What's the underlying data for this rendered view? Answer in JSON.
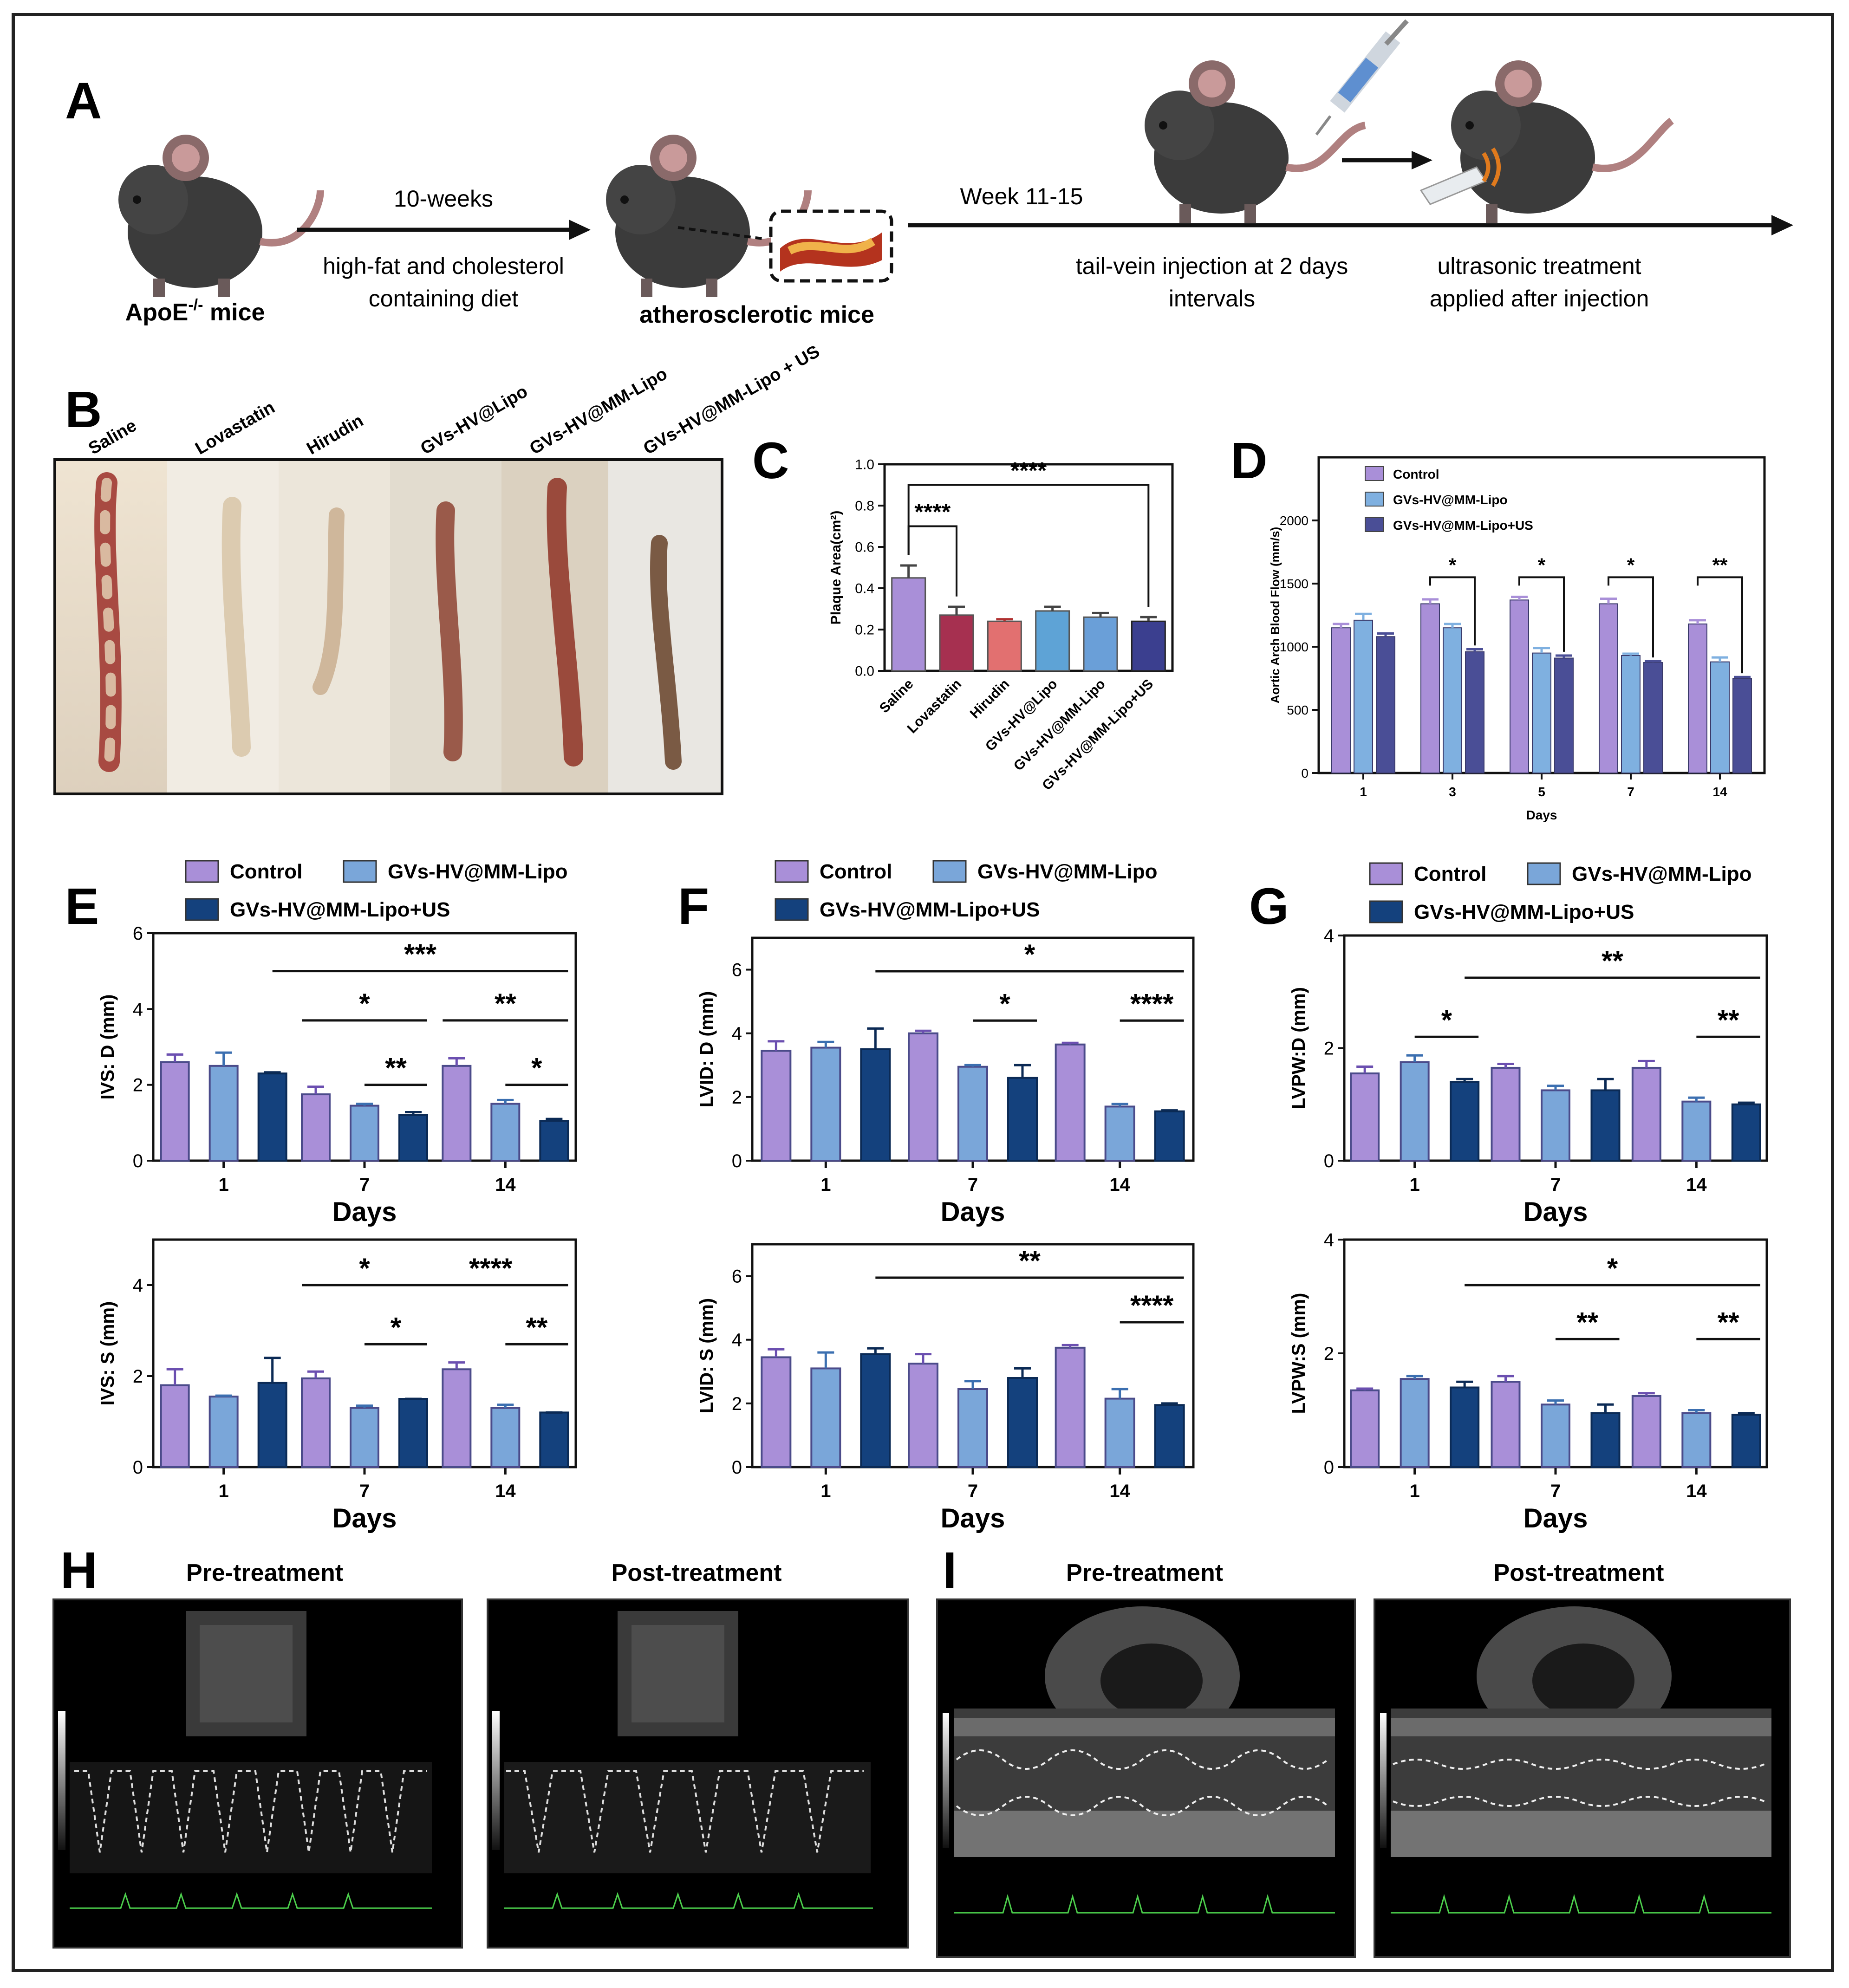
{
  "panel_letters": [
    "A",
    "B",
    "C",
    "D",
    "E",
    "F",
    "G",
    "H",
    "I"
  ],
  "colors": {
    "control": "#a98fd8",
    "mm": "#7aa6d9",
    "mm_us": "#14417d",
    "lovastatin": "#a63050",
    "hirudin": "#e27070",
    "gvs_hv_lipo": "#5ea3d6",
    "gvs_hv_mm_lipo_C": "#6a9fd8",
    "mm_us_C": "#3b3f8f",
    "control_D": "#a98fd8",
    "mm_D": "#7fb0e0",
    "mm_us_D": "#4a4e96",
    "saline_C": "#a98fd8"
  },
  "panelA": {
    "mouse1_label": "ApoE",
    "mouse1_sup": "-/-",
    "mouse1_suffix": " mice",
    "arrow1_top": "10-weeks",
    "arrow1_bottom_1": "high-fat and cholesterol",
    "arrow1_bottom_2": "containing diet",
    "mouse2_label": "atherosclerotic mice",
    "week_label": "Week 11-15",
    "step1_1": "tail-vein injection at 2 days",
    "step1_2": "intervals",
    "step2_1": "ultrasonic treatment",
    "step2_2": "applied after injection"
  },
  "panelB": {
    "labels": [
      "Saline",
      "Lovastatin",
      "Hirudin",
      "GVs-HV@Lipo",
      "GVs-HV@MM-Lipo",
      "GVs-HV@MM-Lipo + US"
    ]
  },
  "panelH": {
    "pre": "Pre-treatment",
    "post": "Post-treatment"
  },
  "panelI": {
    "pre": "Pre-treatment",
    "post": "Post-treatment"
  },
  "legend_EFG": [
    "Control",
    "GVs-HV@MM-Lipo",
    "GVs-HV@MM-Lipo+US"
  ],
  "chart_data": [
    {
      "id": "C",
      "type": "bar",
      "categories": [
        "Saline",
        "Lovastatin",
        "Hirudin",
        "GVs-HV@Lipo",
        "GVs-HV@MM-Lipo",
        "GVs-HV@MM-Lipo+US"
      ],
      "values": [
        0.45,
        0.27,
        0.24,
        0.29,
        0.26,
        0.24
      ],
      "errors": [
        0.06,
        0.04,
        0.01,
        0.02,
        0.02,
        0.02
      ],
      "ylabel": "Plaque Area(cm²)",
      "ylim": [
        0,
        1.0
      ],
      "yticks": [
        "0.0",
        "0.2",
        "0.4",
        "0.6",
        "0.8",
        "1.0"
      ],
      "significance": [
        {
          "from": 0,
          "to": 1,
          "label": "****",
          "y": 0.7
        },
        {
          "from": 0,
          "to": 5,
          "label": "****",
          "y": 0.9
        }
      ]
    },
    {
      "id": "D",
      "type": "bar",
      "categories": [
        "1",
        "3",
        "5",
        "7",
        "14"
      ],
      "xlabel": "Days",
      "ylabel": "Aortic Arch Blood Flow (mm/s)",
      "ylim": [
        0,
        2500
      ],
      "yticks": [
        "0",
        "500",
        "1000",
        "1500",
        "2000"
      ],
      "legend": [
        "Control",
        "GVs-HV@MM-Lipo",
        "GVs-HV@MM-Lipo+US"
      ],
      "series": [
        {
          "name": "Control",
          "values": [
            1150,
            1340,
            1370,
            1340,
            1180
          ],
          "errors": [
            30,
            35,
            25,
            40,
            30
          ]
        },
        {
          "name": "GVs-HV@MM-Lipo",
          "values": [
            1210,
            1150,
            950,
            930,
            880
          ],
          "errors": [
            50,
            30,
            40,
            15,
            35
          ]
        },
        {
          "name": "GVs-HV@MM-Lipo+US",
          "values": [
            1080,
            960,
            910,
            875,
            750
          ],
          "errors": [
            25,
            20,
            20,
            10,
            10
          ]
        }
      ],
      "significance": [
        {
          "group": 1,
          "from": 0,
          "to": 2,
          "label": "*",
          "y": 1550
        },
        {
          "group": 2,
          "from": 0,
          "to": 2,
          "label": "*",
          "y": 1550
        },
        {
          "group": 3,
          "from": 0,
          "to": 2,
          "label": "*",
          "y": 1550
        },
        {
          "group": 4,
          "from": 0,
          "to": 2,
          "label": "**",
          "y": 1550
        }
      ]
    },
    {
      "id": "E1",
      "type": "bar",
      "categories": [
        "1",
        "7",
        "14"
      ],
      "xlabel": "Days",
      "ylabel": "IVS: D (mm)",
      "ylim": [
        0,
        6
      ],
      "yticks": [
        "0",
        "2",
        "4",
        "6"
      ],
      "series": [
        {
          "name": "Control",
          "values": [
            2.6,
            1.75,
            2.5
          ],
          "errors": [
            0.2,
            0.2,
            0.2
          ]
        },
        {
          "name": "GVs-HV@MM-Lipo",
          "values": [
            2.5,
            1.45,
            1.5
          ],
          "errors": [
            0.35,
            0.05,
            0.1
          ]
        },
        {
          "name": "GVs-HV@MM-Lipo+US",
          "values": [
            2.3,
            1.2,
            1.05
          ],
          "errors": [
            0.03,
            0.08,
            0.05
          ]
        }
      ],
      "significance": [
        {
          "a": [
            0,
            2
          ],
          "b": [
            2,
            2
          ],
          "label": "***",
          "y": 5.0
        },
        {
          "a": [
            1,
            0
          ],
          "b": [
            1,
            2
          ],
          "label": "*",
          "y": 3.7
        },
        {
          "a": [
            1,
            1
          ],
          "b": [
            1,
            2
          ],
          "label": "**",
          "y": 2.0
        },
        {
          "a": [
            2,
            0
          ],
          "b": [
            2,
            2
          ],
          "label": "**",
          "y": 3.7
        },
        {
          "a": [
            2,
            1
          ],
          "b": [
            2,
            2
          ],
          "label": "*",
          "y": 2.0
        }
      ]
    },
    {
      "id": "E2",
      "type": "bar",
      "categories": [
        "1",
        "7",
        "14"
      ],
      "xlabel": "Days",
      "ylabel": "IVS: S (mm)",
      "ylim": [
        0,
        5
      ],
      "yticks": [
        "0",
        "2",
        "4"
      ],
      "series": [
        {
          "name": "Control",
          "values": [
            1.8,
            1.95,
            2.15
          ],
          "errors": [
            0.35,
            0.15,
            0.15
          ]
        },
        {
          "name": "GVs-HV@MM-Lipo",
          "values": [
            1.55,
            1.3,
            1.3
          ],
          "errors": [
            0.02,
            0.05,
            0.07
          ]
        },
        {
          "name": "GVs-HV@MM-Lipo+US",
          "values": [
            1.85,
            1.5,
            1.2
          ],
          "errors": [
            0.55,
            0.0,
            0.0
          ]
        }
      ],
      "significance": [
        {
          "a": [
            1,
            0
          ],
          "b": [
            1,
            2
          ],
          "label": "*",
          "y": 4.0
        },
        {
          "a": [
            1,
            1
          ],
          "b": [
            1,
            2
          ],
          "label": "*",
          "y": 2.7
        },
        {
          "a": [
            1,
            2
          ],
          "b": [
            2,
            2
          ],
          "label": "****",
          "y": 4.0
        },
        {
          "a": [
            2,
            1
          ],
          "b": [
            2,
            2
          ],
          "label": "**",
          "y": 2.7
        }
      ]
    },
    {
      "id": "F1",
      "type": "bar",
      "categories": [
        "1",
        "7",
        "14"
      ],
      "xlabel": "Days",
      "ylabel": "LVID: D (mm)",
      "ylim": [
        0,
        7
      ],
      "yticks": [
        "0",
        "2",
        "4",
        "6"
      ],
      "series": [
        {
          "name": "Control",
          "values": [
            3.45,
            4.0,
            3.65
          ],
          "errors": [
            0.3,
            0.08,
            0.05
          ]
        },
        {
          "name": "GVs-HV@MM-Lipo",
          "values": [
            3.55,
            2.95,
            1.7
          ],
          "errors": [
            0.18,
            0.05,
            0.08
          ]
        },
        {
          "name": "GVs-HV@MM-Lipo+US",
          "values": [
            3.5,
            2.6,
            1.55
          ],
          "errors": [
            0.65,
            0.4,
            0.03
          ]
        }
      ],
      "significance": [
        {
          "a": [
            0,
            2
          ],
          "b": [
            2,
            2
          ],
          "label": "*",
          "y": 5.95
        },
        {
          "a": [
            1,
            1
          ],
          "b": [
            1,
            2
          ],
          "label": "*",
          "y": 4.4
        },
        {
          "a": [
            2,
            1
          ],
          "b": [
            2,
            2
          ],
          "label": "****",
          "y": 4.4
        }
      ]
    },
    {
      "id": "F2",
      "type": "bar",
      "categories": [
        "1",
        "7",
        "14"
      ],
      "xlabel": "Days",
      "ylabel": "LVID: S (mm)",
      "ylim": [
        0,
        7
      ],
      "yticks": [
        "0",
        "2",
        "4",
        "6"
      ],
      "series": [
        {
          "name": "Control",
          "values": [
            3.45,
            3.25,
            3.75
          ],
          "errors": [
            0.25,
            0.3,
            0.08
          ]
        },
        {
          "name": "GVs-HV@MM-Lipo",
          "values": [
            3.1,
            2.45,
            2.15
          ],
          "errors": [
            0.5,
            0.25,
            0.3
          ]
        },
        {
          "name": "GVs-HV@MM-Lipo+US",
          "values": [
            3.55,
            2.8,
            1.95
          ],
          "errors": [
            0.18,
            0.3,
            0.05
          ]
        }
      ],
      "significance": [
        {
          "a": [
            0,
            2
          ],
          "b": [
            2,
            2
          ],
          "label": "**",
          "y": 5.95
        },
        {
          "a": [
            2,
            1
          ],
          "b": [
            2,
            2
          ],
          "label": "****",
          "y": 4.55
        }
      ]
    },
    {
      "id": "G1",
      "type": "bar",
      "categories": [
        "1",
        "7",
        "14"
      ],
      "xlabel": "Days",
      "ylabel": "LVPW:D (mm)",
      "ylim": [
        0,
        4
      ],
      "yticks": [
        "0",
        "2",
        "4"
      ],
      "series": [
        {
          "name": "Control",
          "values": [
            1.55,
            1.65,
            1.65
          ],
          "errors": [
            0.12,
            0.07,
            0.12
          ]
        },
        {
          "name": "GVs-HV@MM-Lipo",
          "values": [
            1.75,
            1.25,
            1.05
          ],
          "errors": [
            0.12,
            0.08,
            0.07
          ]
        },
        {
          "name": "GVs-HV@MM-Lipo+US",
          "values": [
            1.4,
            1.25,
            1.0
          ],
          "errors": [
            0.05,
            0.2,
            0.03
          ]
        }
      ],
      "significance": [
        {
          "a": [
            0,
            1
          ],
          "b": [
            0,
            2
          ],
          "label": "*",
          "y": 2.2
        },
        {
          "a": [
            0,
            2
          ],
          "b": [
            2,
            2
          ],
          "label": "**",
          "y": 3.25
        },
        {
          "a": [
            2,
            1
          ],
          "b": [
            2,
            2
          ],
          "label": "**",
          "y": 2.2
        }
      ]
    },
    {
      "id": "G2",
      "type": "bar",
      "categories": [
        "1",
        "7",
        "14"
      ],
      "xlabel": "Days",
      "ylabel": "LVPW:S (mm)",
      "ylim": [
        0,
        4
      ],
      "yticks": [
        "0",
        "2",
        "4"
      ],
      "series": [
        {
          "name": "Control",
          "values": [
            1.35,
            1.5,
            1.25
          ],
          "errors": [
            0.03,
            0.1,
            0.05
          ]
        },
        {
          "name": "GVs-HV@MM-Lipo",
          "values": [
            1.55,
            1.1,
            0.95
          ],
          "errors": [
            0.05,
            0.07,
            0.05
          ]
        },
        {
          "name": "GVs-HV@MM-Lipo+US",
          "values": [
            1.4,
            0.95,
            0.92
          ],
          "errors": [
            0.1,
            0.15,
            0.03
          ]
        }
      ],
      "significance": [
        {
          "a": [
            0,
            2
          ],
          "b": [
            2,
            2
          ],
          "label": "*",
          "y": 3.2
        },
        {
          "a": [
            1,
            1
          ],
          "b": [
            1,
            2
          ],
          "label": "**",
          "y": 2.25
        },
        {
          "a": [
            2,
            1
          ],
          "b": [
            2,
            2
          ],
          "label": "**",
          "y": 2.25
        }
      ]
    }
  ]
}
